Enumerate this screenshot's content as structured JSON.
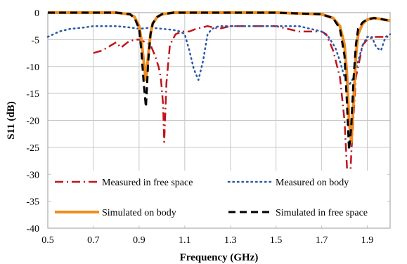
{
  "chart_data": {
    "type": "line",
    "xlabel": "Frequency (GHz)",
    "ylabel": "S11 (dB)",
    "xlim": [
      0.5,
      2.0
    ],
    "ylim": [
      -40,
      0
    ],
    "xticks": [
      "0.5",
      "0.7",
      "0.9",
      "1.1",
      "1.3",
      "1.5",
      "1.7",
      "1.9"
    ],
    "yticks": [
      "0",
      "-5",
      "-10",
      "-15",
      "-20",
      "-25",
      "-30",
      "-35",
      "-40"
    ],
    "grid": true,
    "legend_placement": "bottom",
    "series": [
      {
        "name": "Measured in free space",
        "color": "#c0141a",
        "style": "dash-dot",
        "x": [
          0.7,
          0.74,
          0.78,
          0.8,
          0.82,
          0.85,
          0.88,
          0.9,
          0.93,
          0.95,
          0.97,
          0.985,
          0.995,
          1.005,
          1.01,
          1.02,
          1.035,
          1.06,
          1.09,
          1.12,
          1.15,
          1.2,
          1.25,
          1.3,
          1.35,
          1.4,
          1.45,
          1.5,
          1.55,
          1.6,
          1.65,
          1.7,
          1.72,
          1.75,
          1.78,
          1.8,
          1.81,
          1.82,
          1.83,
          1.85,
          1.88,
          1.9,
          1.93,
          1.96,
          2.0
        ],
        "y": [
          -7.5,
          -7,
          -6,
          -5.5,
          -6.5,
          -5.5,
          -5,
          -5,
          -5.5,
          -6,
          -8,
          -10,
          -12,
          -17,
          -24,
          -13,
          -6,
          -4,
          -3.5,
          -3.5,
          -3,
          -2.5,
          -3,
          -2.5,
          -2.5,
          -2.5,
          -2.5,
          -2.5,
          -3,
          -3.5,
          -3.5,
          -3.5,
          -4,
          -7,
          -12,
          -20,
          -28,
          -35.5,
          -26,
          -12,
          -6,
          -5,
          -4.5,
          -4.5,
          -4.5
        ]
      },
      {
        "name": "Measured on body",
        "color": "#2858a8",
        "style": "dotted",
        "x": [
          0.5,
          0.55,
          0.6,
          0.65,
          0.7,
          0.75,
          0.8,
          0.85,
          0.9,
          0.95,
          1.0,
          1.05,
          1.08,
          1.1,
          1.12,
          1.14,
          1.16,
          1.18,
          1.2,
          1.22,
          1.25,
          1.3,
          1.35,
          1.4,
          1.45,
          1.5,
          1.55,
          1.6,
          1.65,
          1.7,
          1.73,
          1.76,
          1.78,
          1.8,
          1.82,
          1.84,
          1.86,
          1.88,
          1.9,
          1.92,
          1.94,
          1.96,
          1.98,
          2.0
        ],
        "y": [
          -4.5,
          -3.5,
          -3,
          -2.8,
          -2.5,
          -2.5,
          -2.5,
          -2.7,
          -3,
          -2.8,
          -3,
          -3.2,
          -3.5,
          -4,
          -7,
          -10.5,
          -12.5,
          -9,
          -4,
          -3,
          -2.5,
          -2.5,
          -2.5,
          -2.5,
          -2.5,
          -2.5,
          -2.5,
          -2.5,
          -3,
          -3.5,
          -4.5,
          -6.5,
          -9,
          -12,
          -13.5,
          -12,
          -9,
          -6,
          -4.5,
          -4.5,
          -6.5,
          -7,
          -4.5,
          -4
        ]
      },
      {
        "name": "Simulated on body",
        "color": "#f08c1e",
        "style": "solid",
        "x": [
          0.5,
          0.8,
          0.86,
          0.88,
          0.9,
          0.91,
          0.92,
          0.93,
          0.94,
          0.95,
          0.96,
          0.98,
          1.0,
          1.05,
          1.1,
          1.5,
          1.7,
          1.75,
          1.78,
          1.8,
          1.81,
          1.82,
          1.83,
          1.84,
          1.85,
          1.86,
          1.88,
          1.9,
          1.93,
          1.96,
          2.0
        ],
        "y": [
          0,
          0,
          -0.3,
          -0.8,
          -2.5,
          -5,
          -9,
          -12.5,
          -8,
          -4,
          -2,
          -0.8,
          -0.3,
          0,
          0,
          0,
          -0.3,
          -1,
          -2.5,
          -6,
          -11,
          -20,
          -24,
          -16,
          -8,
          -4,
          -2,
          -1.3,
          -1,
          -1.2,
          -1.5
        ]
      },
      {
        "name": "Simulated in free space",
        "color": "#000000",
        "style": "dashed",
        "x": [
          0.5,
          0.8,
          0.86,
          0.88,
          0.9,
          0.91,
          0.92,
          0.93,
          0.94,
          0.95,
          0.96,
          0.98,
          1.0,
          1.05,
          1.1,
          1.5,
          1.7,
          1.75,
          1.78,
          1.8,
          1.81,
          1.82,
          1.83,
          1.84,
          1.85,
          1.86,
          1.88,
          1.9,
          1.93,
          1.96,
          2.0
        ],
        "y": [
          0,
          0,
          -0.3,
          -1,
          -3,
          -7,
          -13,
          -17.5,
          -9,
          -4,
          -2,
          -0.8,
          -0.3,
          0,
          0,
          0,
          -0.3,
          -1,
          -3,
          -8,
          -16,
          -25.5,
          -21,
          -12,
          -6,
          -3,
          -1.8,
          -1.2,
          -1,
          -1.2,
          -1.5
        ]
      }
    ]
  }
}
